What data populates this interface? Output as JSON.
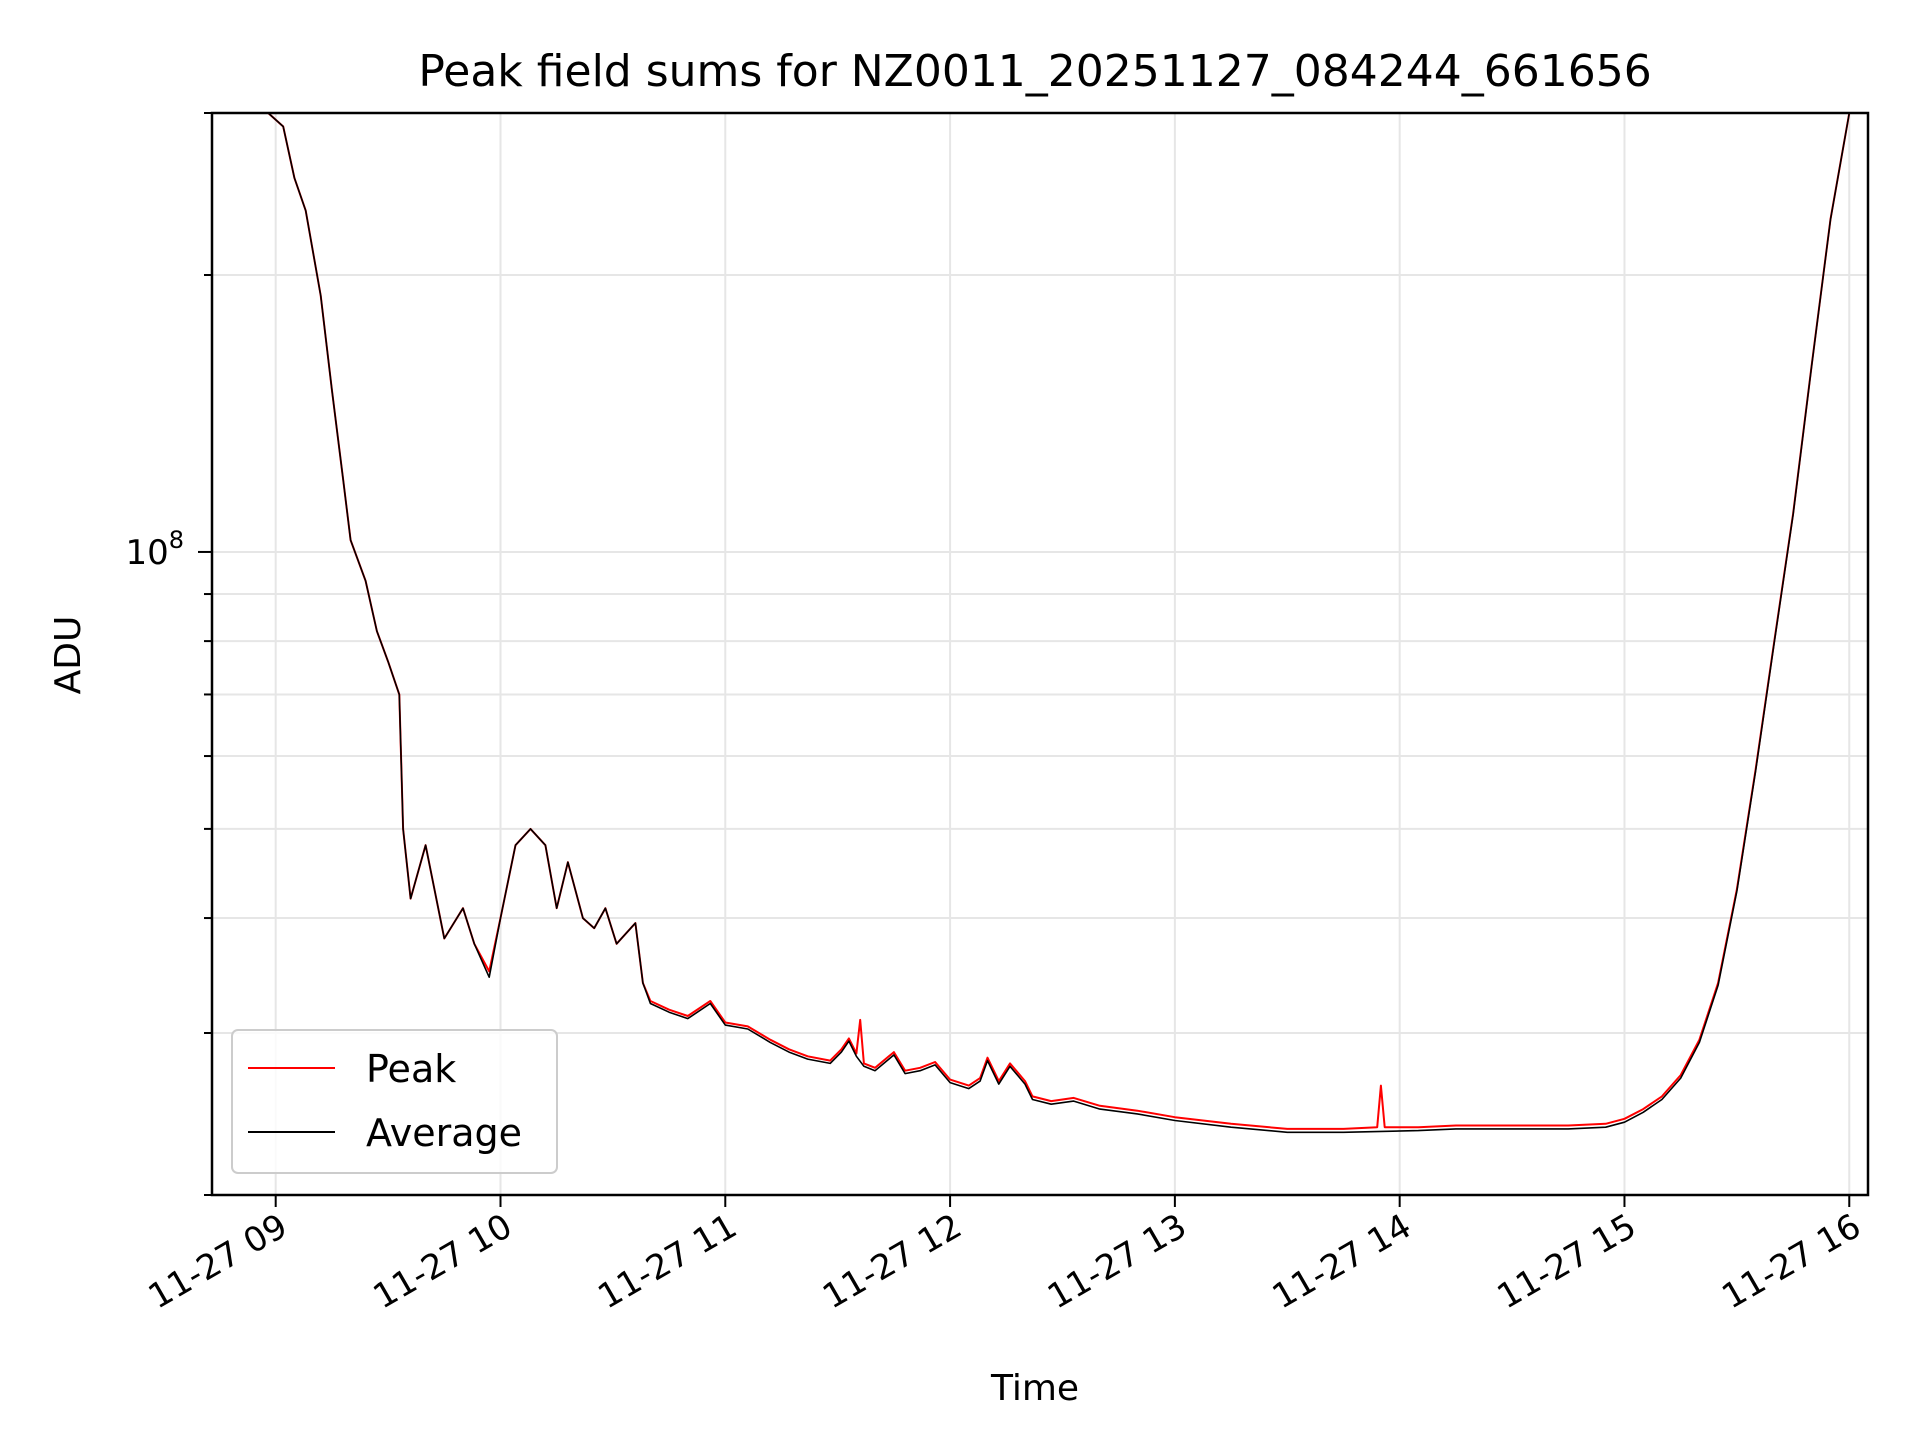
{
  "chart_data": {
    "type": "line",
    "title": "Peak field sums for NZ0011_20251127_084244_661656",
    "xlabel": "Time",
    "ylabel": "ADU",
    "x_tick_labels": [
      "11-27 09",
      "11-27 10",
      "11-27 11",
      "11-27 12",
      "11-27 13",
      "11-27 14",
      "11-27 15",
      "11-27 16"
    ],
    "y_tick_labels": [
      {
        "value": 100000000,
        "base": "10",
        "exp": "8"
      }
    ],
    "yscale": "log",
    "xlim": [
      "2025-11-27 08:43",
      "2025-11-27 16:05"
    ],
    "ylim": [
      20000000,
      300000000
    ],
    "grid": true,
    "legend_location": "lower left",
    "series": [
      {
        "name": "Peak",
        "color": "#ff0000",
        "points": [
          [
            "2025-11-27 08:58",
            300000000
          ],
          [
            "2025-11-27 09:02",
            290000000
          ],
          [
            "2025-11-27 09:05",
            255000000
          ],
          [
            "2025-11-27 09:08",
            235000000
          ],
          [
            "2025-11-27 09:12",
            190000000
          ],
          [
            "2025-11-27 09:15",
            150000000
          ],
          [
            "2025-11-27 09:18",
            120000000
          ],
          [
            "2025-11-27 09:20",
            103000000
          ],
          [
            "2025-11-27 09:24",
            93000000
          ],
          [
            "2025-11-27 09:27",
            82000000
          ],
          [
            "2025-11-27 09:30",
            76000000
          ],
          [
            "2025-11-27 09:33",
            70000000
          ],
          [
            "2025-11-27 09:34",
            50000000
          ],
          [
            "2025-11-27 09:36",
            42000000
          ],
          [
            "2025-11-27 09:40",
            48000000
          ],
          [
            "2025-11-27 09:45",
            38000000
          ],
          [
            "2025-11-27 09:50",
            41000000
          ],
          [
            "2025-11-27 09:53",
            37500000
          ],
          [
            "2025-11-27 09:57",
            35000000
          ],
          [
            "2025-11-27 10:00",
            40000000
          ],
          [
            "2025-11-27 10:04",
            48000000
          ],
          [
            "2025-11-27 10:08",
            50000000
          ],
          [
            "2025-11-27 10:12",
            48000000
          ],
          [
            "2025-11-27 10:15",
            41000000
          ],
          [
            "2025-11-27 10:18",
            46000000
          ],
          [
            "2025-11-27 10:22",
            40000000
          ],
          [
            "2025-11-27 10:25",
            39000000
          ],
          [
            "2025-11-27 10:28",
            41000000
          ],
          [
            "2025-11-27 10:31",
            37500000
          ],
          [
            "2025-11-27 10:36",
            39500000
          ],
          [
            "2025-11-27 10:38",
            34000000
          ],
          [
            "2025-11-27 10:40",
            32500000
          ],
          [
            "2025-11-27 10:45",
            31800000
          ],
          [
            "2025-11-27 10:50",
            31300000
          ],
          [
            "2025-11-27 10:56",
            32500000
          ],
          [
            "2025-11-27 11:00",
            30800000
          ],
          [
            "2025-11-27 11:06",
            30500000
          ],
          [
            "2025-11-27 11:12",
            29500000
          ],
          [
            "2025-11-27 11:17",
            28800000
          ],
          [
            "2025-11-27 11:22",
            28300000
          ],
          [
            "2025-11-27 11:28",
            28000000
          ],
          [
            "2025-11-27 11:31",
            28800000
          ],
          [
            "2025-11-27 11:33",
            29600000
          ],
          [
            "2025-11-27 11:35",
            28500000
          ],
          [
            "2025-11-27 11:36",
            31000000
          ],
          [
            "2025-11-27 11:37",
            27800000
          ],
          [
            "2025-11-27 11:40",
            27500000
          ],
          [
            "2025-11-27 11:45",
            28600000
          ],
          [
            "2025-11-27 11:48",
            27300000
          ],
          [
            "2025-11-27 11:52",
            27500000
          ],
          [
            "2025-11-27 11:56",
            27900000
          ],
          [
            "2025-11-27 12:00",
            26700000
          ],
          [
            "2025-11-27 12:05",
            26300000
          ],
          [
            "2025-11-27 12:08",
            26800000
          ],
          [
            "2025-11-27 12:10",
            28200000
          ],
          [
            "2025-11-27 12:13",
            26600000
          ],
          [
            "2025-11-27 12:16",
            27800000
          ],
          [
            "2025-11-27 12:20",
            26600000
          ],
          [
            "2025-11-27 12:22",
            25600000
          ],
          [
            "2025-11-27 12:27",
            25300000
          ],
          [
            "2025-11-27 12:33",
            25500000
          ],
          [
            "2025-11-27 12:40",
            25000000
          ],
          [
            "2025-11-27 12:50",
            24700000
          ],
          [
            "2025-11-27 13:00",
            24300000
          ],
          [
            "2025-11-27 13:15",
            23900000
          ],
          [
            "2025-11-27 13:30",
            23600000
          ],
          [
            "2025-11-27 13:45",
            23600000
          ],
          [
            "2025-11-27 13:54",
            23700000
          ],
          [
            "2025-11-27 13:55",
            26300000
          ],
          [
            "2025-11-27 13:56",
            23700000
          ],
          [
            "2025-11-27 14:05",
            23700000
          ],
          [
            "2025-11-27 14:15",
            23800000
          ],
          [
            "2025-11-27 14:25",
            23800000
          ],
          [
            "2025-11-27 14:35",
            23800000
          ],
          [
            "2025-11-27 14:45",
            23800000
          ],
          [
            "2025-11-27 14:55",
            23900000
          ],
          [
            "2025-11-27 15:00",
            24200000
          ],
          [
            "2025-11-27 15:05",
            24800000
          ],
          [
            "2025-11-27 15:10",
            25600000
          ],
          [
            "2025-11-27 15:15",
            27000000
          ],
          [
            "2025-11-27 15:20",
            29500000
          ],
          [
            "2025-11-27 15:25",
            34000000
          ],
          [
            "2025-11-27 15:30",
            43000000
          ],
          [
            "2025-11-27 15:35",
            58000000
          ],
          [
            "2025-11-27 15:40",
            80000000
          ],
          [
            "2025-11-27 15:45",
            110000000
          ],
          [
            "2025-11-27 15:50",
            160000000
          ],
          [
            "2025-11-27 15:55",
            230000000
          ],
          [
            "2025-11-27 16:00",
            300000000
          ]
        ]
      },
      {
        "name": "Average",
        "color": "#000000",
        "points": [
          [
            "2025-11-27 08:58",
            300000000
          ],
          [
            "2025-11-27 09:02",
            290000000
          ],
          [
            "2025-11-27 09:05",
            255000000
          ],
          [
            "2025-11-27 09:08",
            235000000
          ],
          [
            "2025-11-27 09:12",
            190000000
          ],
          [
            "2025-11-27 09:15",
            150000000
          ],
          [
            "2025-11-27 09:18",
            120000000
          ],
          [
            "2025-11-27 09:20",
            103000000
          ],
          [
            "2025-11-27 09:24",
            93000000
          ],
          [
            "2025-11-27 09:27",
            82000000
          ],
          [
            "2025-11-27 09:30",
            76000000
          ],
          [
            "2025-11-27 09:33",
            70000000
          ],
          [
            "2025-11-27 09:34",
            50000000
          ],
          [
            "2025-11-27 09:36",
            42000000
          ],
          [
            "2025-11-27 09:40",
            48000000
          ],
          [
            "2025-11-27 09:45",
            38000000
          ],
          [
            "2025-11-27 09:50",
            41000000
          ],
          [
            "2025-11-27 09:53",
            37500000
          ],
          [
            "2025-11-27 09:57",
            34500000
          ],
          [
            "2025-11-27 10:00",
            40000000
          ],
          [
            "2025-11-27 10:04",
            48000000
          ],
          [
            "2025-11-27 10:08",
            50000000
          ],
          [
            "2025-11-27 10:12",
            48000000
          ],
          [
            "2025-11-27 10:15",
            41000000
          ],
          [
            "2025-11-27 10:18",
            46000000
          ],
          [
            "2025-11-27 10:22",
            40000000
          ],
          [
            "2025-11-27 10:25",
            39000000
          ],
          [
            "2025-11-27 10:28",
            41000000
          ],
          [
            "2025-11-27 10:31",
            37500000
          ],
          [
            "2025-11-27 10:36",
            39500000
          ],
          [
            "2025-11-27 10:38",
            34000000
          ],
          [
            "2025-11-27 10:40",
            32300000
          ],
          [
            "2025-11-27 10:45",
            31600000
          ],
          [
            "2025-11-27 10:50",
            31100000
          ],
          [
            "2025-11-27 10:56",
            32300000
          ],
          [
            "2025-11-27 11:00",
            30600000
          ],
          [
            "2025-11-27 11:06",
            30300000
          ],
          [
            "2025-11-27 11:12",
            29300000
          ],
          [
            "2025-11-27 11:17",
            28600000
          ],
          [
            "2025-11-27 11:22",
            28100000
          ],
          [
            "2025-11-27 11:28",
            27800000
          ],
          [
            "2025-11-27 11:31",
            28600000
          ],
          [
            "2025-11-27 11:33",
            29400000
          ],
          [
            "2025-11-27 11:35",
            28300000
          ],
          [
            "2025-11-27 11:37",
            27600000
          ],
          [
            "2025-11-27 11:40",
            27300000
          ],
          [
            "2025-11-27 11:45",
            28400000
          ],
          [
            "2025-11-27 11:48",
            27100000
          ],
          [
            "2025-11-27 11:52",
            27300000
          ],
          [
            "2025-11-27 11:56",
            27700000
          ],
          [
            "2025-11-27 12:00",
            26500000
          ],
          [
            "2025-11-27 12:05",
            26100000
          ],
          [
            "2025-11-27 12:08",
            26600000
          ],
          [
            "2025-11-27 12:10",
            28000000
          ],
          [
            "2025-11-27 12:13",
            26400000
          ],
          [
            "2025-11-27 12:16",
            27600000
          ],
          [
            "2025-11-27 12:20",
            26400000
          ],
          [
            "2025-11-27 12:22",
            25400000
          ],
          [
            "2025-11-27 12:27",
            25100000
          ],
          [
            "2025-11-27 12:33",
            25300000
          ],
          [
            "2025-11-27 12:40",
            24800000
          ],
          [
            "2025-11-27 12:50",
            24500000
          ],
          [
            "2025-11-27 13:00",
            24100000
          ],
          [
            "2025-11-27 13:15",
            23700000
          ],
          [
            "2025-11-27 13:30",
            23400000
          ],
          [
            "2025-11-27 13:45",
            23400000
          ],
          [
            "2025-11-27 14:05",
            23500000
          ],
          [
            "2025-11-27 14:15",
            23600000
          ],
          [
            "2025-11-27 14:25",
            23600000
          ],
          [
            "2025-11-27 14:35",
            23600000
          ],
          [
            "2025-11-27 14:45",
            23600000
          ],
          [
            "2025-11-27 14:55",
            23700000
          ],
          [
            "2025-11-27 15:00",
            24000000
          ],
          [
            "2025-11-27 15:05",
            24600000
          ],
          [
            "2025-11-27 15:10",
            25400000
          ],
          [
            "2025-11-27 15:15",
            26800000
          ],
          [
            "2025-11-27 15:20",
            29300000
          ],
          [
            "2025-11-27 15:25",
            33800000
          ],
          [
            "2025-11-27 15:30",
            42800000
          ],
          [
            "2025-11-27 15:35",
            57800000
          ],
          [
            "2025-11-27 15:40",
            79800000
          ],
          [
            "2025-11-27 15:45",
            109800000
          ],
          [
            "2025-11-27 15:50",
            159800000
          ],
          [
            "2025-11-27 15:55",
            229800000
          ],
          [
            "2025-11-27 16:00",
            300000000
          ]
        ]
      }
    ]
  }
}
